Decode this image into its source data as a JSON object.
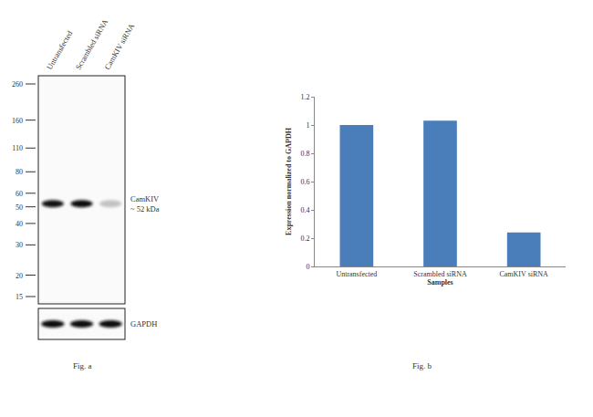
{
  "blot": {
    "lanes": [
      "Untransfected",
      "Scrambled siRNA",
      "CamKIV siRNA"
    ],
    "markers": [
      260,
      160,
      110,
      80,
      60,
      50,
      40,
      30,
      20,
      15
    ],
    "band_label": "CamKIV",
    "band_size": "~ 52 kDa",
    "loading_control": "GAPDH",
    "caption": "Fig. a"
  },
  "chart_data": {
    "type": "bar",
    "categories": [
      "Untransfected",
      "Scrambled siRNA",
      "CamKIV siRNA"
    ],
    "values": [
      1.0,
      1.03,
      0.24
    ],
    "color": "#4a7ebb",
    "xlabel": "Samples",
    "ylabel": "Expression normalized to GAPDH",
    "ylim": [
      0,
      1.2
    ],
    "yticks": [
      0,
      0.2,
      0.4,
      0.6,
      0.8,
      1,
      1.2
    ],
    "grid": false,
    "caption": "Fig. b"
  }
}
